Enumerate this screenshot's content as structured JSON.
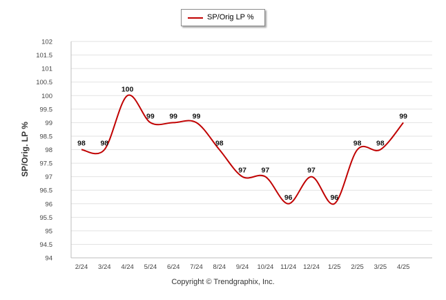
{
  "chart_data": {
    "type": "line",
    "categories": [
      "2/24",
      "3/24",
      "4/24",
      "5/24",
      "6/24",
      "7/24",
      "8/24",
      "9/24",
      "10/24",
      "11/24",
      "12/24",
      "1/25",
      "2/25",
      "3/25",
      "4/25"
    ],
    "series": [
      {
        "name": "SP/Orig LP %",
        "values": [
          98,
          98,
          100,
          99,
          99,
          99,
          98,
          97,
          97,
          96,
          97,
          96,
          98,
          98,
          99
        ],
        "data_labels": [
          "98",
          "98",
          "100",
          "99",
          "99",
          "99",
          "98",
          "97",
          "97",
          "96",
          "97",
          "96",
          "98",
          "98",
          "99"
        ],
        "color": "#c00000"
      }
    ],
    "ylabel": "SP/Orig. LP %",
    "ylim": [
      94,
      102
    ],
    "yticks": [
      "102",
      "101.5",
      "101",
      "100.5",
      "100",
      "99.5",
      "99",
      "98.5",
      "98",
      "97.5",
      "97",
      "96.5",
      "96",
      "95.5",
      "95",
      "94.5",
      "94"
    ],
    "grid": true,
    "legend_position": "top-center"
  },
  "legend": {
    "label": "SP/Orig LP %"
  },
  "copyright": "Copyright © Trendgraphix, Inc."
}
